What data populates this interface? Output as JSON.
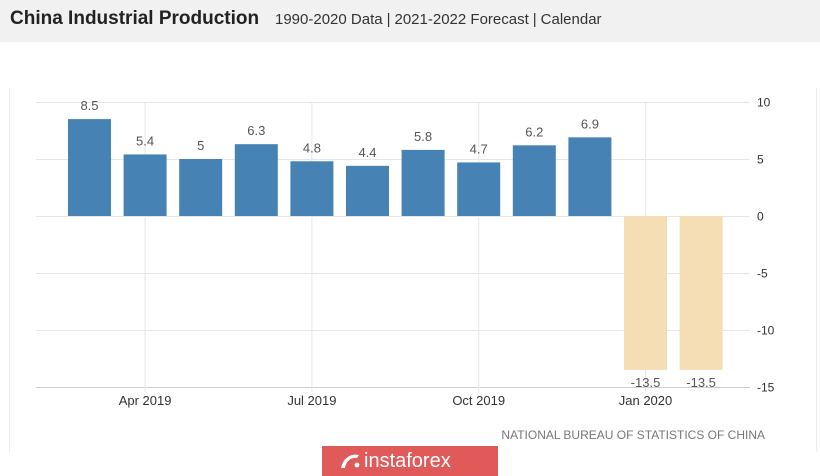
{
  "header": {
    "links": [
      "1990-2020 Data",
      "2021-2022 Forecast",
      "Calendar"
    ],
    "separator": "|"
  },
  "chart_data": {
    "type": "bar",
    "title": "China Industrial Production",
    "categories": [
      "",
      "Apr 2019",
      "",
      "",
      "Jul 2019",
      "",
      "",
      "Oct 2019",
      "",
      "",
      "Jan 2020",
      ""
    ],
    "values": [
      8.5,
      5.4,
      5,
      6.3,
      4.8,
      4.4,
      5.8,
      4.7,
      6.2,
      6.9,
      -13.5,
      -13.5
    ],
    "bar_colors": [
      "#4682b4",
      "#4682b4",
      "#4682b4",
      "#4682b4",
      "#4682b4",
      "#4682b4",
      "#4682b4",
      "#4682b4",
      "#4682b4",
      "#4682b4",
      "#f5deb3",
      "#f5deb3"
    ],
    "ylim": [
      -15,
      10
    ],
    "y_ticks": [
      10,
      5,
      0,
      -5,
      -10,
      -15
    ],
    "y_axis_side": "right",
    "grid": true,
    "data_labels": true,
    "source": "NATIONAL BUREAU OF STATISTICS OF CHINA"
  },
  "watermark": {
    "text": "instaforex",
    "color": "#e05a5a"
  }
}
